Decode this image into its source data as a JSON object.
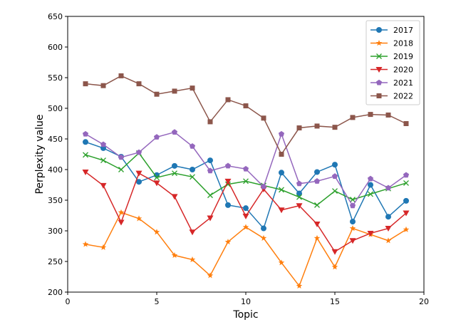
{
  "chart_data": {
    "type": "line",
    "title": "",
    "xlabel": "Topic",
    "ylabel": "Perplexity value",
    "xlim": [
      0,
      20
    ],
    "ylim": [
      200,
      650
    ],
    "xticks": [
      0,
      5,
      10,
      15,
      20
    ],
    "yticks": [
      200,
      250,
      300,
      350,
      400,
      450,
      500,
      550,
      600,
      650
    ],
    "grid": false,
    "legend_position": "top-right",
    "x": [
      1,
      2,
      3,
      4,
      5,
      6,
      7,
      8,
      9,
      10,
      11,
      12,
      13,
      14,
      15,
      16,
      17,
      18,
      19
    ],
    "series": [
      {
        "name": "2017",
        "color": "#1f77b4",
        "marker": "circle",
        "values": [
          445,
          435,
          421,
          380,
          391,
          406,
          400,
          415,
          342,
          337,
          304,
          395,
          361,
          396,
          408,
          315,
          375,
          323,
          349
        ]
      },
      {
        "name": "2018",
        "color": "#ff7f0e",
        "marker": "star",
        "values": [
          278,
          273,
          330,
          320,
          298,
          260,
          253,
          227,
          282,
          306,
          288,
          248,
          210,
          288,
          241,
          304,
          294,
          284,
          302
        ]
      },
      {
        "name": "2019",
        "color": "#2ca02c",
        "marker": "x",
        "values": [
          424,
          415,
          400,
          427,
          387,
          394,
          388,
          358,
          376,
          381,
          374,
          367,
          355,
          342,
          365,
          351,
          360,
          369,
          378
        ]
      },
      {
        "name": "2020",
        "color": "#d62728",
        "marker": "triangle-down",
        "values": [
          396,
          374,
          314,
          394,
          378,
          356,
          298,
          321,
          381,
          324,
          368,
          334,
          341,
          311,
          266,
          284,
          296,
          304,
          329
        ]
      },
      {
        "name": "2021",
        "color": "#9467bd",
        "marker": "pentagon",
        "values": [
          458,
          441,
          420,
          428,
          453,
          461,
          438,
          398,
          406,
          401,
          372,
          458,
          377,
          381,
          389,
          341,
          385,
          370,
          391
        ]
      },
      {
        "name": "2022",
        "color": "#8c564b",
        "marker": "square",
        "values": [
          540,
          537,
          553,
          540,
          523,
          528,
          533,
          478,
          514,
          504,
          484,
          425,
          468,
          471,
          469,
          485,
          490,
          489,
          475
        ]
      }
    ]
  }
}
